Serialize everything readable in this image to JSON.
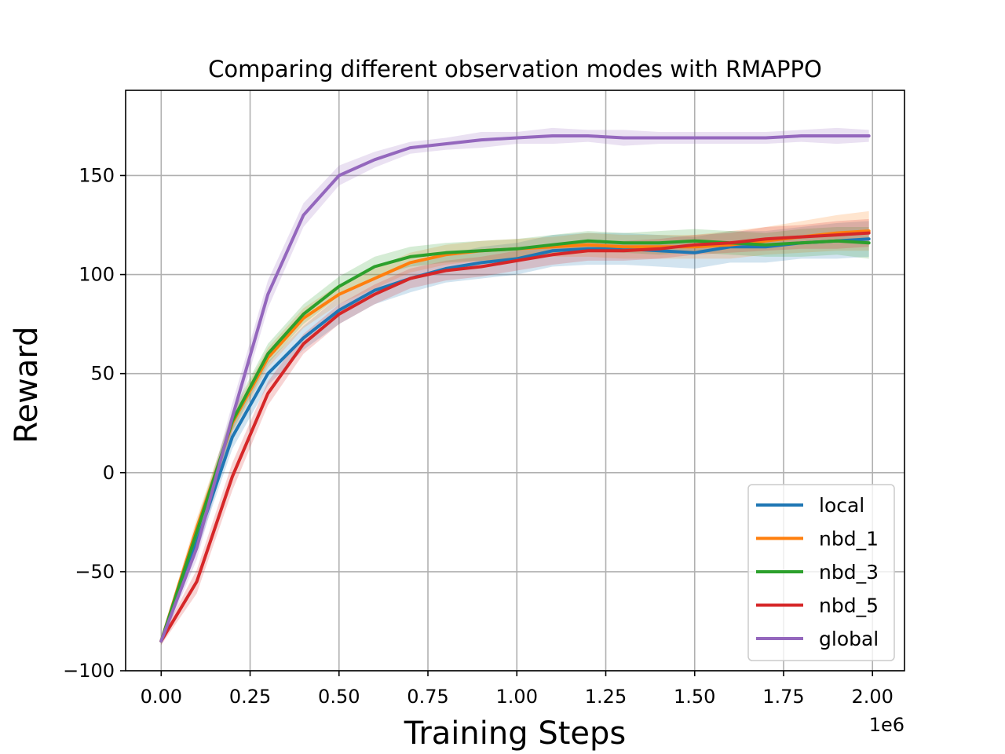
{
  "chart_data": {
    "type": "line",
    "title": "Comparing different observation modes with RMAPPO",
    "xlabel": "Training Steps",
    "ylabel": "Reward",
    "x_offset_label": "1e6",
    "xlim": [
      -0.1,
      2.09
    ],
    "ylim": [
      -100,
      193
    ],
    "x_ticks": [
      0.0,
      0.25,
      0.5,
      0.75,
      1.0,
      1.25,
      1.5,
      1.75,
      2.0
    ],
    "x_tick_labels": [
      "0.00",
      "0.25",
      "0.50",
      "0.75",
      "1.00",
      "1.25",
      "1.50",
      "1.75",
      "2.00"
    ],
    "y_ticks": [
      -100,
      -50,
      0,
      50,
      100,
      150
    ],
    "y_tick_labels": [
      "−100",
      "−50",
      "0",
      "50",
      "100",
      "150"
    ],
    "grid": true,
    "legend_position": "bottom-right",
    "x": [
      0.0,
      0.1,
      0.2,
      0.3,
      0.4,
      0.5,
      0.6,
      0.7,
      0.8,
      0.9,
      1.0,
      1.1,
      1.2,
      1.3,
      1.4,
      1.5,
      1.6,
      1.7,
      1.8,
      1.9,
      1.99
    ],
    "series": [
      {
        "name": "local",
        "color": "#1f77b4",
        "values": [
          -85,
          -35,
          18,
          50,
          68,
          82,
          92,
          98,
          103,
          106,
          108,
          112,
          113,
          113,
          112,
          111,
          114,
          114,
          116,
          117,
          118
        ],
        "spread": [
          2,
          5,
          6,
          6,
          6,
          7,
          7,
          7,
          7,
          8,
          8,
          8,
          8,
          8,
          8,
          8,
          8,
          8,
          8,
          9,
          9
        ]
      },
      {
        "name": "nbd_1",
        "color": "#ff7f0e",
        "values": [
          -85,
          -28,
          25,
          58,
          78,
          90,
          98,
          106,
          110,
          112,
          113,
          114,
          115,
          114,
          114,
          114,
          115,
          117,
          119,
          121,
          122
        ],
        "spread": [
          2,
          5,
          5,
          5,
          5,
          5,
          5,
          5,
          5,
          5,
          5,
          5,
          6,
          6,
          6,
          6,
          7,
          7,
          8,
          9,
          10
        ]
      },
      {
        "name": "nbd_3",
        "color": "#2ca02c",
        "values": [
          -85,
          -30,
          26,
          60,
          80,
          94,
          104,
          109,
          111,
          112,
          113,
          115,
          117,
          116,
          116,
          117,
          116,
          115,
          116,
          117,
          116
        ],
        "spread": [
          2,
          5,
          5,
          5,
          5,
          5,
          5,
          5,
          5,
          5,
          5,
          5,
          5,
          5,
          6,
          6,
          6,
          6,
          7,
          7,
          8
        ]
      },
      {
        "name": "nbd_5",
        "color": "#d62728",
        "values": [
          -85,
          -55,
          -2,
          40,
          65,
          80,
          90,
          98,
          102,
          104,
          107,
          110,
          112,
          112,
          113,
          115,
          116,
          118,
          119,
          120,
          121
        ],
        "spread": [
          2,
          6,
          7,
          6,
          5,
          5,
          5,
          5,
          5,
          5,
          5,
          5,
          5,
          5,
          5,
          5,
          5,
          6,
          6,
          7,
          7
        ]
      },
      {
        "name": "global",
        "color": "#9467bd",
        "values": [
          -85,
          -38,
          28,
          90,
          130,
          150,
          158,
          164,
          166,
          168,
          169,
          170,
          170,
          169,
          169,
          169,
          169,
          169,
          170,
          170,
          170
        ],
        "spread": [
          2,
          6,
          7,
          7,
          6,
          5,
          4,
          3,
          3,
          4,
          3,
          4,
          3,
          4,
          3,
          3,
          3,
          3,
          3,
          4,
          3
        ]
      }
    ]
  }
}
